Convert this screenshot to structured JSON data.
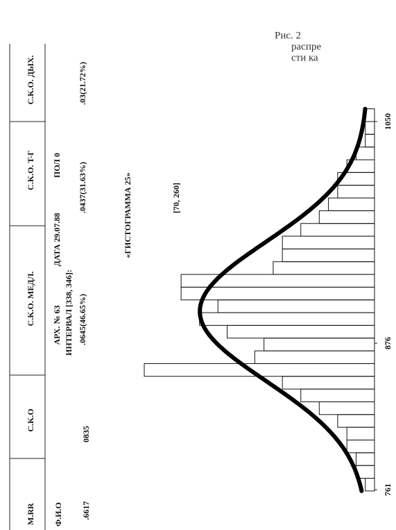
{
  "table": {
    "header": [
      "M.RR",
      "C.K.O",
      "C.K.O. МЕДЛ.",
      "C.K.O. T-Г",
      "C.K.O. ДЫХ."
    ],
    "info": {
      "name": "Ф.И.О",
      "archive": "АРХ. № 63",
      "date": "ДАТА 29.07.88",
      "sex": "ПОЛ 0",
      "interval": "ИНТЕРВАЛ [338, 346]:"
    },
    "values": [
      ".6617",
      "0835",
      ".0645(46.65%)",
      ".0437(31.63%)",
      ".03(21.72%)"
    ]
  },
  "chart_data": {
    "type": "histogram",
    "title": "«ГИСТОГРАММА 25»",
    "subtitle": "[70, 260]",
    "bins": [
      760,
      770,
      780,
      790,
      800,
      810,
      820,
      830,
      840,
      850,
      860,
      870,
      880,
      890,
      900,
      910,
      920,
      930,
      940,
      950,
      960,
      970,
      980,
      990,
      1000,
      1010,
      1020,
      1030,
      1040,
      1050,
      1060
    ],
    "values": [
      1,
      2,
      2,
      3,
      3,
      4,
      6,
      8,
      10,
      25,
      13,
      12,
      16,
      19,
      17,
      21,
      21,
      11,
      10,
      10,
      8,
      6,
      5,
      4,
      4,
      3,
      2,
      1,
      1,
      1
    ],
    "xlim": [
      760,
      1060
    ],
    "xticks": [
      761,
      876,
      1050
    ],
    "color": "#111"
  },
  "caption": [
    "Рис. 2",
    "распре",
    "сти ка"
  ]
}
